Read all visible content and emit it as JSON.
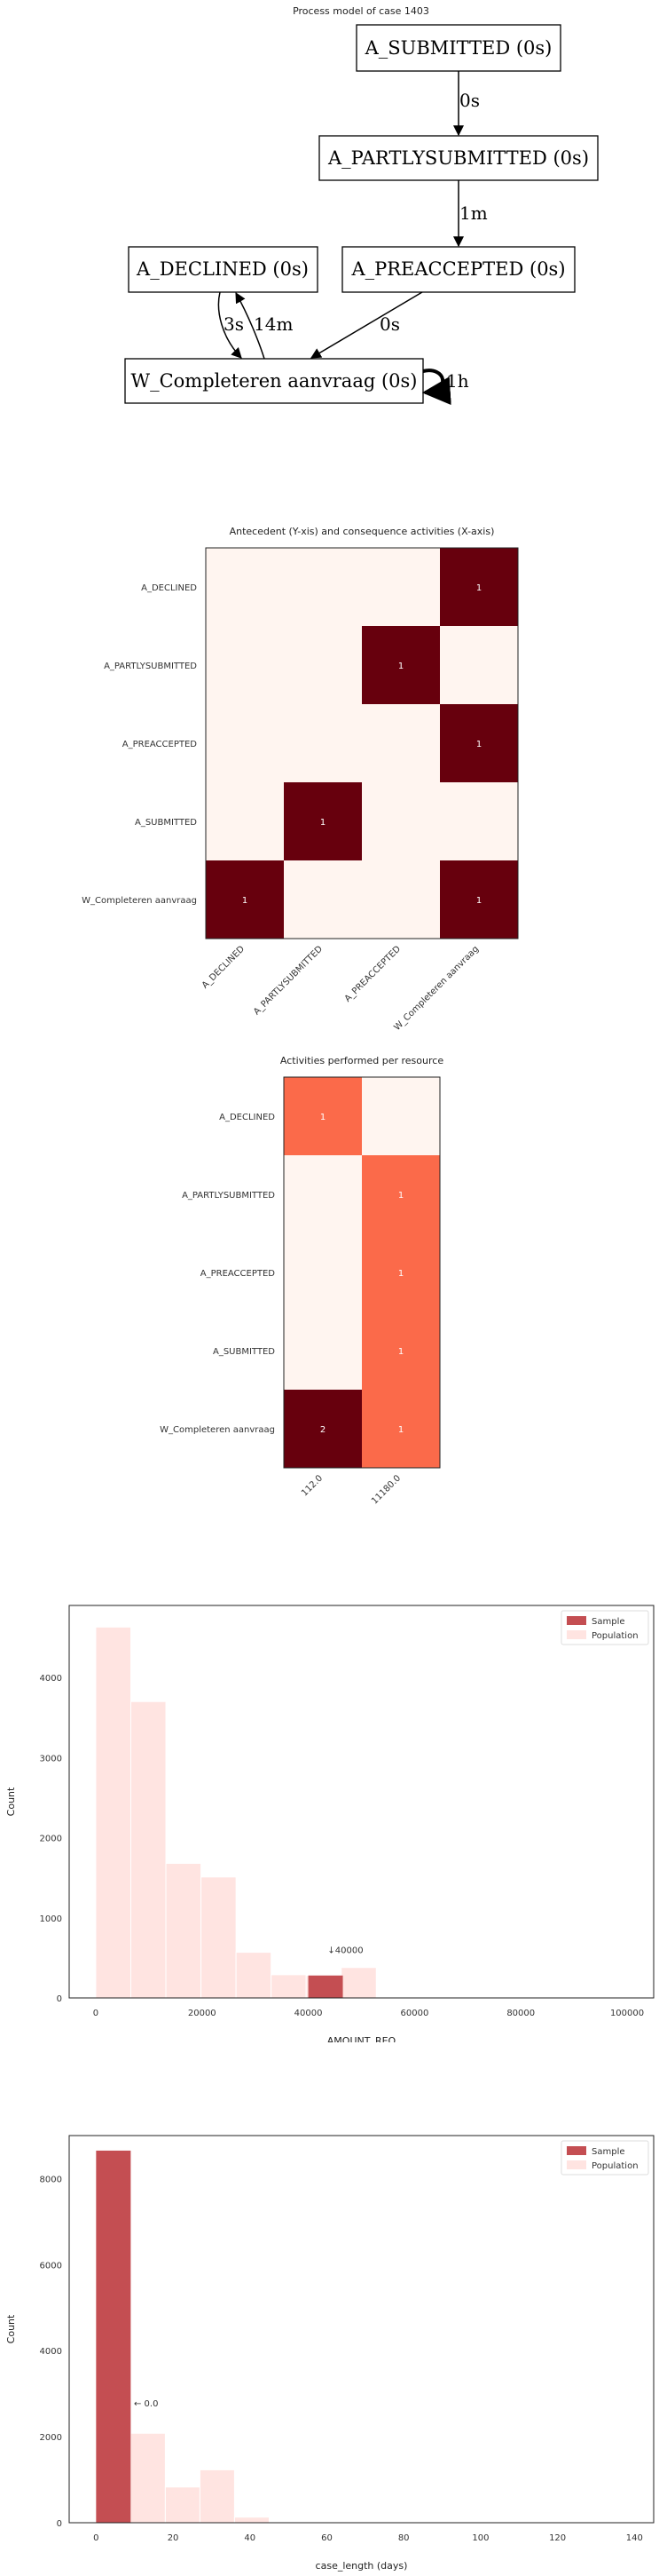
{
  "process_model": {
    "title": "Process model of case 1403",
    "nodes": {
      "submitted": "A_SUBMITTED (0s)",
      "partly": "A_PARTLYSUBMITTED (0s)",
      "declined": "A_DECLINED (0s)",
      "preaccepted": "A_PREACCEPTED (0s)",
      "completeren": "W_Completeren aanvraag (0s)"
    },
    "edges": {
      "sub_partly": "0s",
      "partly_pre": "1m",
      "dec_comp": "3s",
      "comp_dec": "14m",
      "pre_comp": "0s",
      "comp_self": "1h"
    }
  },
  "chart_data": [
    {
      "type": "heatmap",
      "title": "Antecedent (Y-xis) and consequence activities (X-axis)",
      "rows": [
        "A_DECLINED",
        "A_PARTLYSUBMITTED",
        "A_PREACCEPTED",
        "A_SUBMITTED",
        "W_Completeren aanvraag"
      ],
      "columns": [
        "A_DECLINED",
        "A_PARTLYSUBMITTED",
        "A_PREACCEPTED",
        "W_Completeren aanvraag"
      ],
      "values": [
        [
          0,
          0,
          0,
          1
        ],
        [
          0,
          0,
          1,
          0
        ],
        [
          0,
          0,
          0,
          1
        ],
        [
          0,
          1,
          0,
          0
        ],
        [
          1,
          0,
          0,
          1
        ]
      ],
      "colors": {
        "low": "#fff5f0",
        "high": "#67000d"
      }
    },
    {
      "type": "heatmap",
      "title": "Activities performed per resource",
      "rows": [
        "A_DECLINED",
        "A_PARTLYSUBMITTED",
        "A_PREACCEPTED",
        "A_SUBMITTED",
        "W_Completeren aanvraag"
      ],
      "columns": [
        "112.0",
        "11180.0"
      ],
      "values": [
        [
          1,
          0
        ],
        [
          0,
          1
        ],
        [
          0,
          1
        ],
        [
          0,
          1
        ],
        [
          2,
          1
        ]
      ],
      "vmax": 2,
      "colors": {
        "low": "#fff5f0",
        "mid": "#fb6a4a",
        "high": "#67000d"
      }
    },
    {
      "type": "bar",
      "xlabel": "AMOUNT_REQ",
      "ylabel": "Count",
      "xlim": [
        -5000,
        105000
      ],
      "ylim": [
        0,
        4900
      ],
      "xticks": [
        "0",
        "20000",
        "40000",
        "60000",
        "80000",
        "100000"
      ],
      "yticks": [
        "0",
        "1000",
        "2000",
        "3000",
        "4000"
      ],
      "legend": {
        "placement": "top-right",
        "entries": [
          "Sample",
          "Population"
        ]
      },
      "population": {
        "name": "Population",
        "bin_edges": [
          0,
          6600,
          13200,
          19800,
          26400,
          33000,
          39600,
          46200,
          52800
        ],
        "counts": [
          4630,
          3700,
          1680,
          1510,
          570,
          290,
          280,
          380
        ]
      },
      "sample": {
        "name": "Sample",
        "bin": [
          40000,
          46500
        ],
        "count": 280
      },
      "annotation": "↓40000",
      "annotation_at": {
        "x": 47000,
        "y": 560
      },
      "colors": {
        "sample": "#c44e52",
        "population": "#ffe4e1"
      }
    },
    {
      "type": "bar",
      "xlabel": "case_length (days)",
      "ylabel": "Count",
      "xlim": [
        -7,
        145
      ],
      "ylim": [
        0,
        9000
      ],
      "xticks": [
        "0",
        "20",
        "40",
        "60",
        "80",
        "100",
        "120",
        "140"
      ],
      "yticks": [
        "0",
        "2000",
        "4000",
        "6000",
        "8000"
      ],
      "legend": {
        "placement": "top-right",
        "entries": [
          "Sample",
          "Population"
        ]
      },
      "population": {
        "name": "Population",
        "bin_edges": [
          0,
          9,
          18,
          27,
          36,
          45
        ],
        "counts": [
          8650,
          2080,
          830,
          1230,
          130
        ]
      },
      "sample": {
        "name": "Sample",
        "bin": [
          0,
          9
        ],
        "count": 8650
      },
      "annotation": "← 0.0",
      "annotation_at": {
        "x": 13,
        "y": 2700
      },
      "colors": {
        "sample": "#c44e52",
        "population": "#ffe4e1"
      }
    }
  ]
}
